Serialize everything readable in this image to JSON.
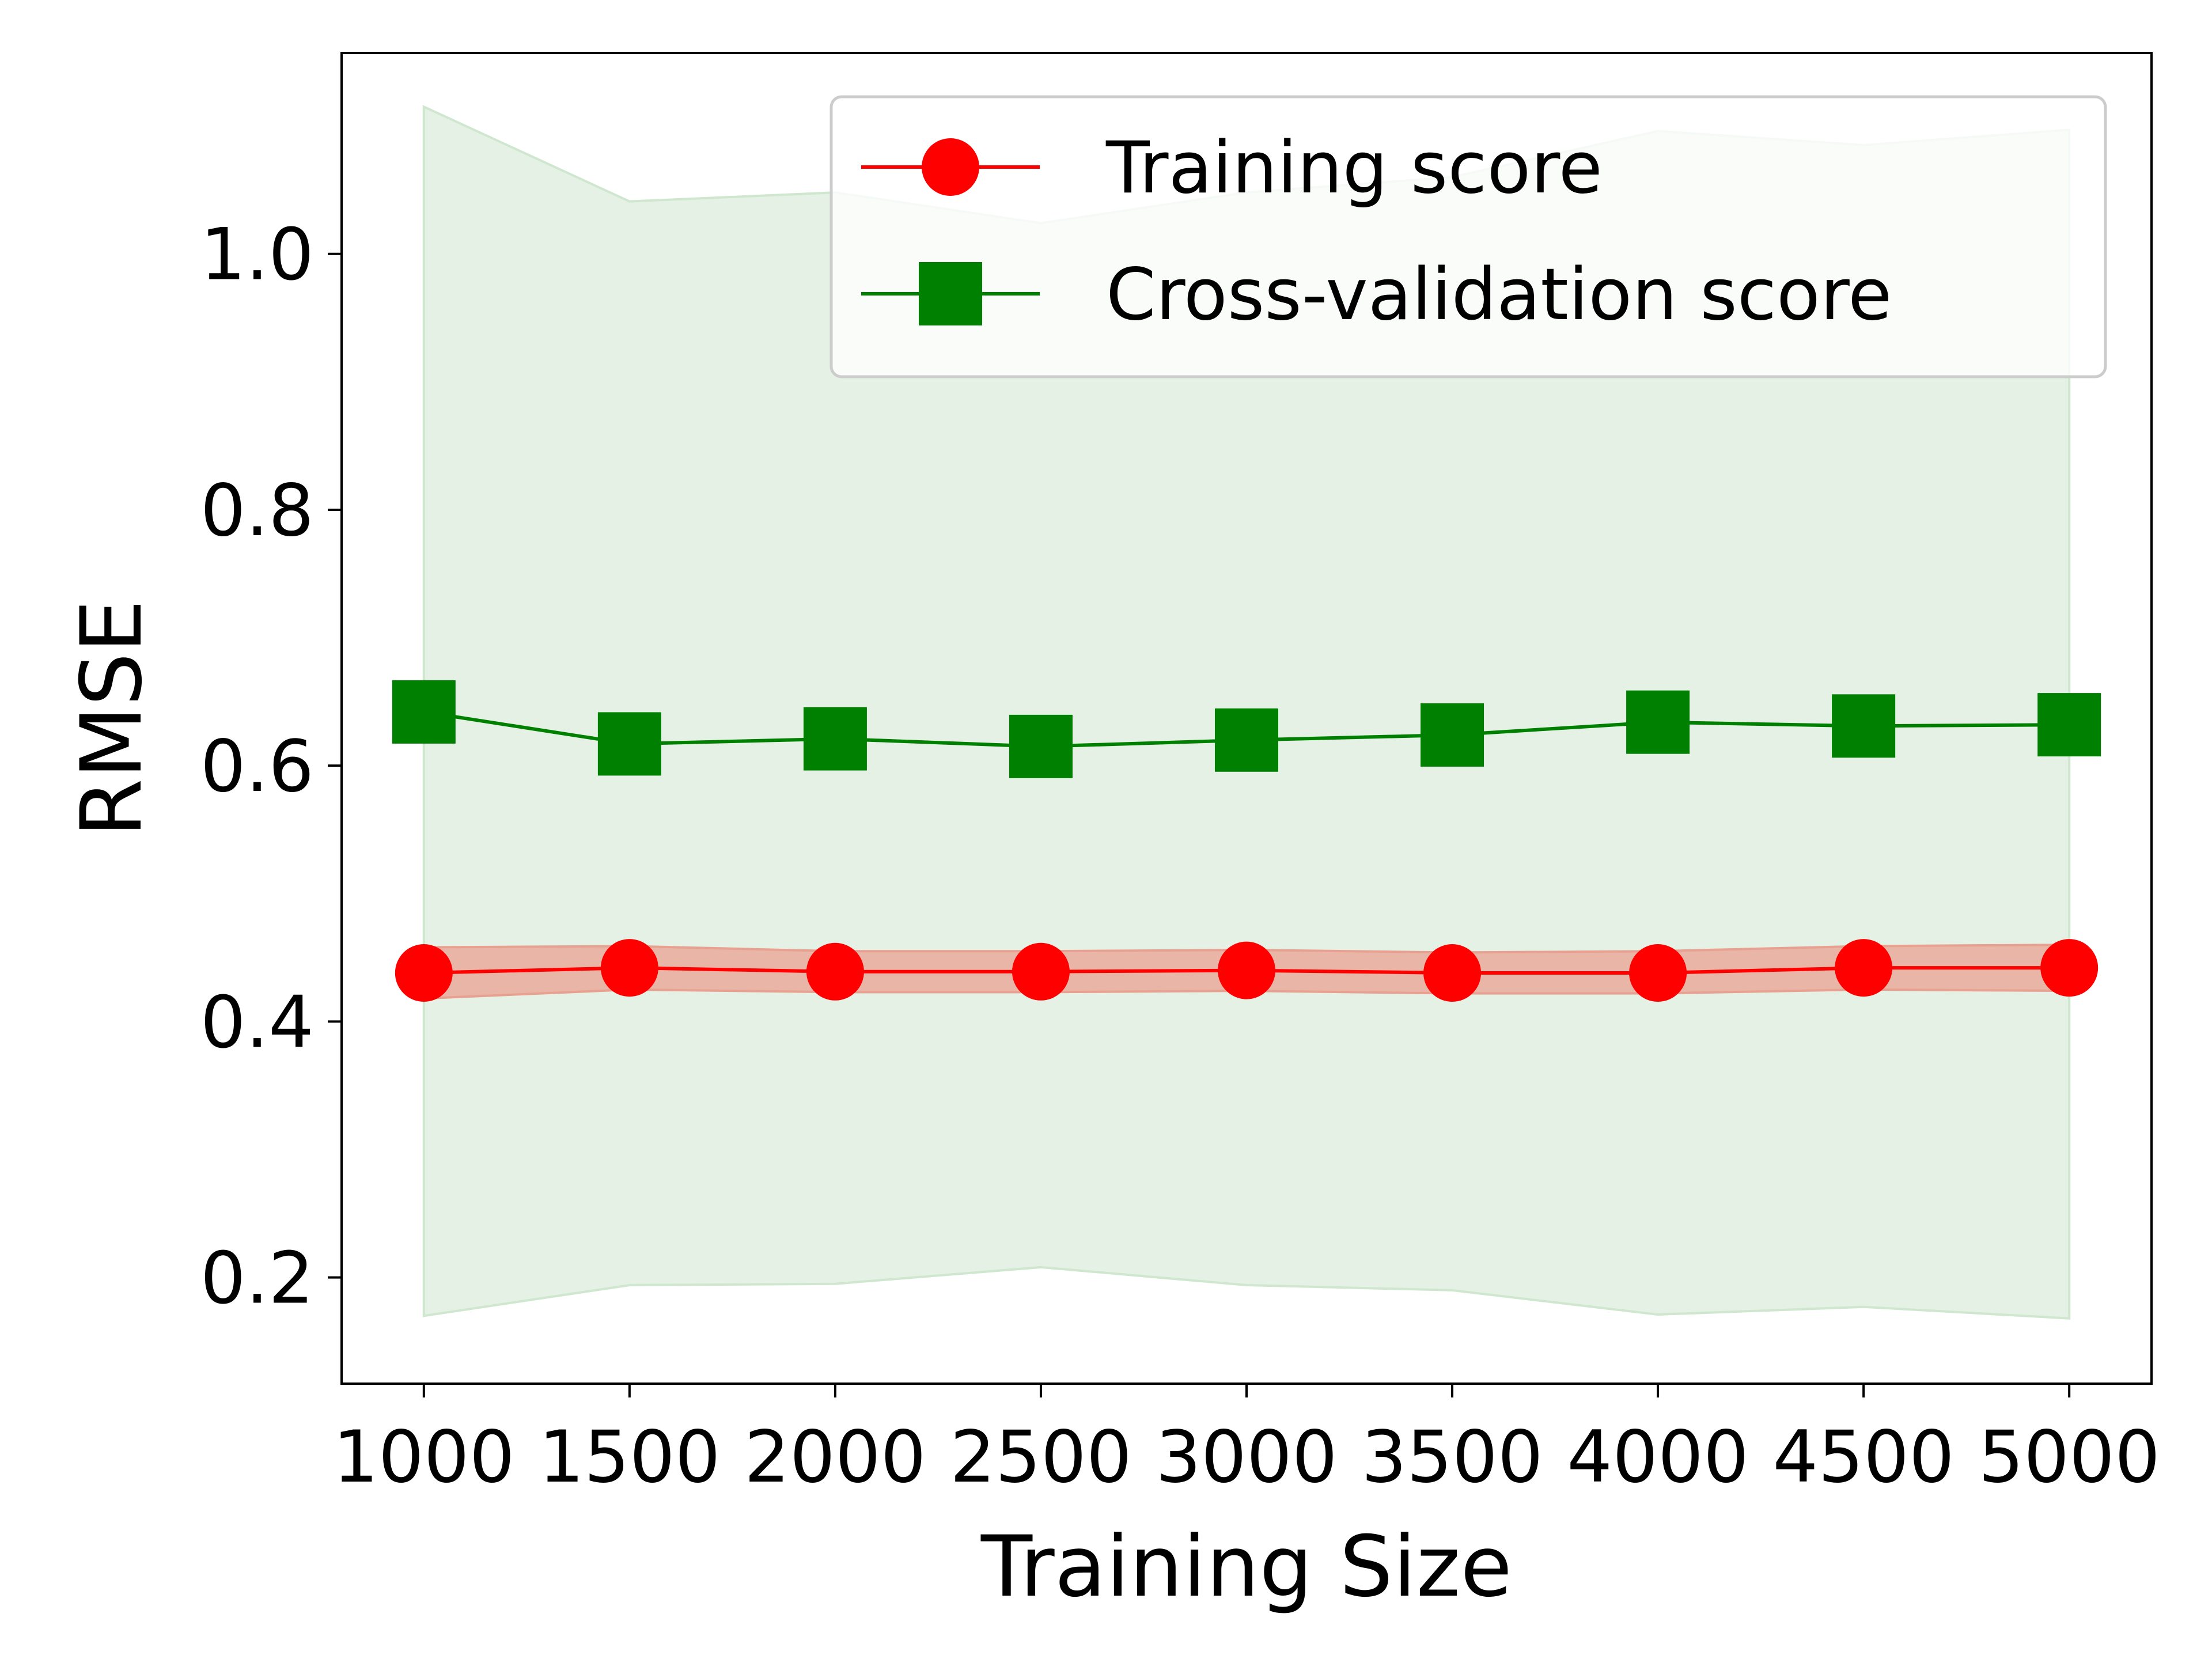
{
  "chart_data": {
    "type": "line",
    "xlabel": "Training Size",
    "ylabel": "RMSE",
    "xlim": [
      800,
      5200
    ],
    "ylim": [
      0.117,
      1.157
    ],
    "x": [
      1000,
      1500,
      2000,
      2500,
      3000,
      3500,
      4000,
      4500,
      5000
    ],
    "x_ticks": [
      "1000",
      "1500",
      "2000",
      "2500",
      "3000",
      "3500",
      "4000",
      "4500",
      "5000"
    ],
    "x_tick_values": [
      1000,
      1500,
      2000,
      2500,
      3000,
      3500,
      4000,
      4500,
      5000
    ],
    "y_ticks": [
      "0.2",
      "0.4",
      "0.6",
      "0.8",
      "1.0"
    ],
    "y_tick_values": [
      0.2,
      0.4,
      0.6,
      0.8,
      1.0
    ],
    "grid": false,
    "legend_position": "top-right",
    "series": [
      {
        "name": "Training score",
        "color": "#ff0000",
        "marker": "circle",
        "values": [
          0.438,
          0.442,
          0.439,
          0.439,
          0.44,
          0.438,
          0.438,
          0.442,
          0.442
        ],
        "band_lower": [
          0.418,
          0.425,
          0.423,
          0.423,
          0.424,
          0.422,
          0.422,
          0.425,
          0.424
        ],
        "band_upper": [
          0.458,
          0.459,
          0.455,
          0.455,
          0.456,
          0.454,
          0.455,
          0.459,
          0.46
        ],
        "band_color": "#e8a090"
      },
      {
        "name": "Cross-validation score",
        "color": "#008000",
        "marker": "square",
        "values": [
          0.642,
          0.617,
          0.621,
          0.615,
          0.62,
          0.624,
          0.634,
          0.631,
          0.632
        ],
        "band_lower": [
          0.17,
          0.194,
          0.195,
          0.208,
          0.194,
          0.19,
          0.171,
          0.177,
          0.168
        ],
        "band_upper": [
          1.115,
          1.041,
          1.048,
          1.024,
          1.048,
          1.06,
          1.096,
          1.085,
          1.097
        ],
        "band_color": "#cfe6cf"
      }
    ]
  }
}
